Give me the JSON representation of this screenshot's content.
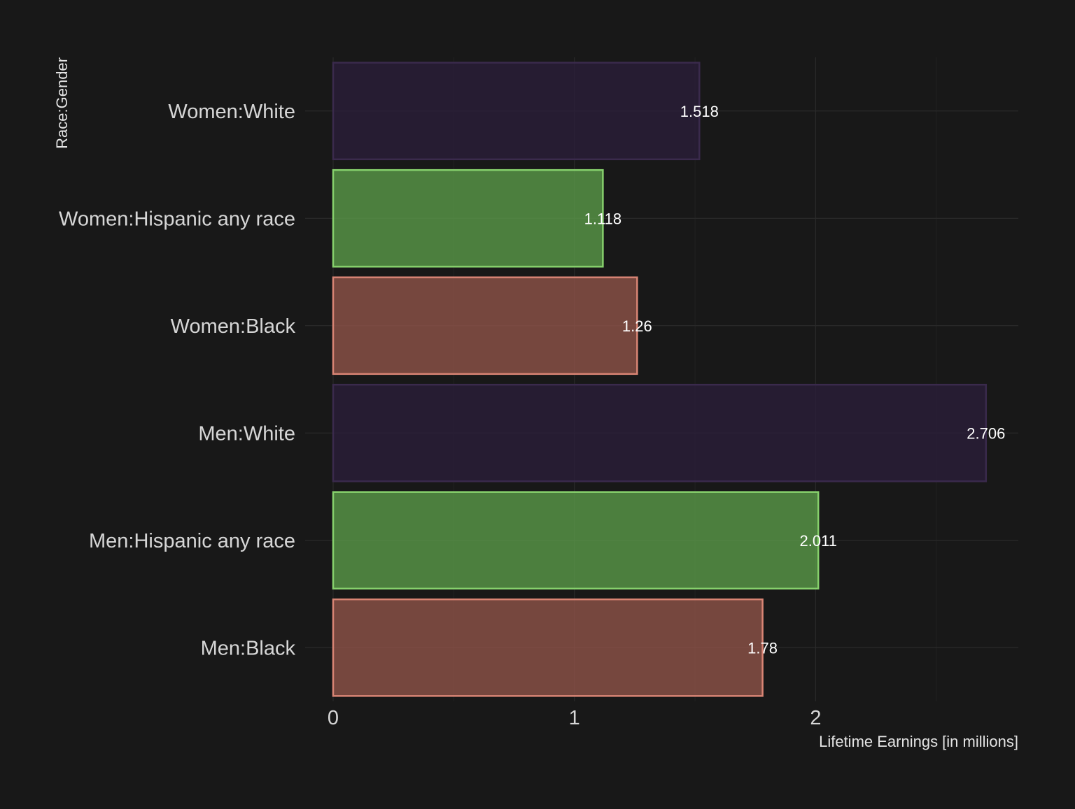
{
  "chart_data": {
    "type": "bar",
    "orientation": "horizontal",
    "xlabel": "Lifetime Earnings [in millions]",
    "ylabel": "Race:Gender",
    "xlim": [
      0,
      2.84
    ],
    "x_ticks": [
      "0",
      "1",
      "2"
    ],
    "x_tick_values": [
      0,
      1,
      2
    ],
    "grid": true,
    "legend": "none",
    "categories": [
      "Women:White",
      "Women:Hispanic any race",
      "Women:Black",
      "Men:White",
      "Men:Hispanic any race",
      "Men:Black"
    ],
    "values": [
      1.518,
      1.118,
      1.26,
      2.706,
      2.011,
      1.78
    ],
    "value_labels": [
      "1.518",
      "1.118",
      "1.26",
      "2.706",
      "2.011",
      "1.78"
    ],
    "bar_colors": {
      "White": {
        "fill": "#2b1e3a",
        "stroke": "#3a2a4c"
      },
      "Hispanic any race": {
        "fill": "#5a9a48",
        "stroke": "#86d06c"
      },
      "Black": {
        "fill": "#8e5448",
        "stroke": "#d88474"
      }
    },
    "bar_color_keys": [
      "White",
      "Hispanic any race",
      "Black",
      "White",
      "Hispanic any race",
      "Black"
    ],
    "background_color": "#181818"
  }
}
